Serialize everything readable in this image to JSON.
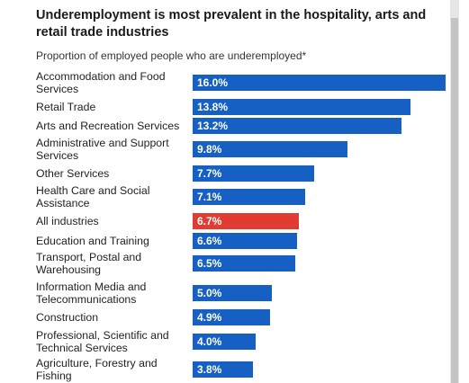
{
  "chart_data": {
    "type": "bar",
    "orientation": "horizontal",
    "title": "Underemployment is most prevalent in the hospitality, arts and retail trade industries",
    "subtitle": "Proportion of employed people who are underemployed*",
    "categories": [
      "Accommodation and Food Services",
      "Retail Trade",
      "Arts and Recreation Services",
      "Administrative and Support Services",
      "Other Services",
      "Health Care and Social Assistance",
      "All industries",
      "Education and Training",
      "Transport, Postal and Warehousing",
      "Information Media and Telecommunications",
      "Construction",
      "Professional, Scientific and Technical Services",
      "Agriculture, Forestry and Fishing"
    ],
    "values": [
      16.0,
      13.8,
      13.2,
      9.8,
      7.7,
      7.1,
      6.7,
      6.6,
      6.5,
      5.0,
      4.9,
      4.0,
      3.8
    ],
    "value_labels": [
      "16.0%",
      "13.8%",
      "13.2%",
      "9.8%",
      "7.7%",
      "7.1%",
      "6.7%",
      "6.6%",
      "6.5%",
      "5.0%",
      "4.9%",
      "4.0%",
      "3.8%"
    ],
    "colors": [
      "#1660c4",
      "#1660c4",
      "#1660c4",
      "#1660c4",
      "#1660c4",
      "#1660c4",
      "#e03c31",
      "#1660c4",
      "#1660c4",
      "#1660c4",
      "#1660c4",
      "#1660c4",
      "#1660c4"
    ]
  }
}
